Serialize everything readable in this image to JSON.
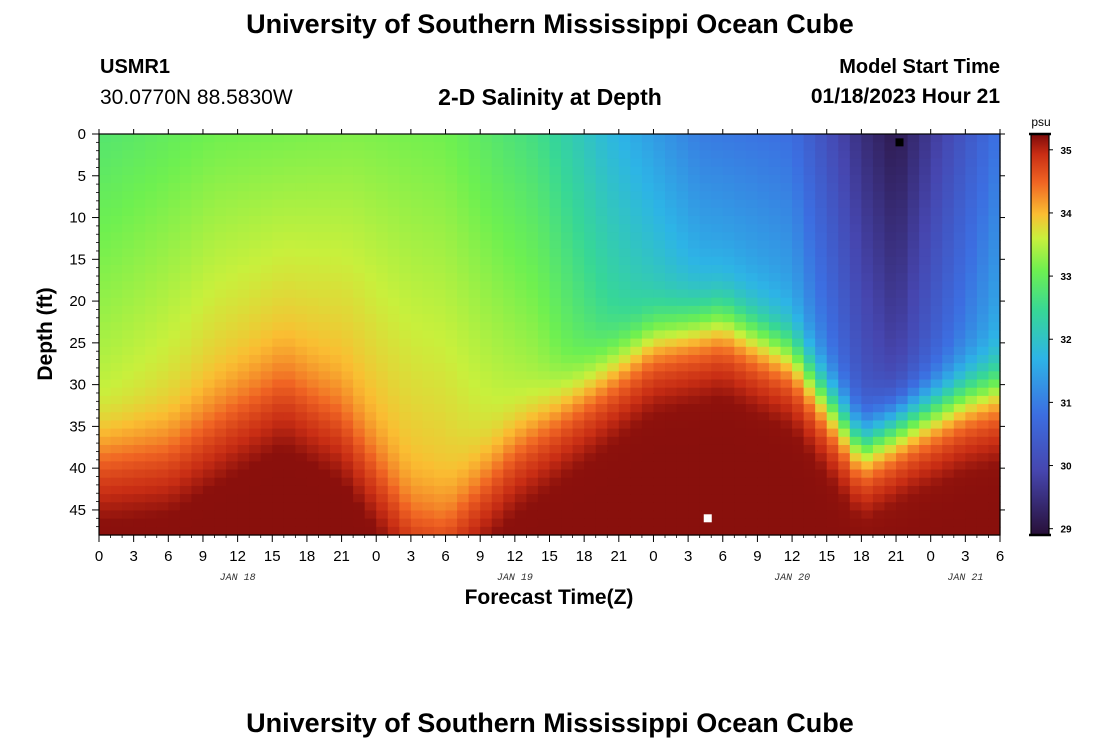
{
  "header": {
    "title": "University of Southern Mississippi Ocean Cube",
    "station_id": "USMR1",
    "coordinates": "30.0770N  88.5830W",
    "subtitle": "2-D Salinity at Depth",
    "start_label": "Model Start Time",
    "start_value": "01/18/2023 Hour 21"
  },
  "footer": {
    "title": "University of Southern Mississippi Ocean Cube"
  },
  "chart_data": {
    "type": "heatmap",
    "title": "2-D Salinity at Depth",
    "xlabel": "Forecast Time(Z)",
    "ylabel": "Depth (ft)",
    "x_range_hours": [
      0,
      78
    ],
    "x_ticks": [
      0,
      3,
      6,
      9,
      12,
      15,
      18,
      21,
      24,
      27,
      30,
      33,
      36,
      39,
      42,
      45,
      48,
      51,
      54,
      57,
      60,
      63,
      66,
      69,
      72,
      75,
      78
    ],
    "x_tick_labels": [
      "0",
      "3",
      "6",
      "9",
      "12",
      "15",
      "18",
      "21",
      "0",
      "3",
      "6",
      "9",
      "12",
      "15",
      "18",
      "21",
      "0",
      "3",
      "6",
      "9",
      "12",
      "15",
      "18",
      "21",
      "0",
      "3",
      "6"
    ],
    "day_labels": [
      {
        "hour": 12,
        "text": "JAN 18"
      },
      {
        "hour": 36,
        "text": "JAN 19"
      },
      {
        "hour": 60,
        "text": "JAN 20"
      },
      {
        "hour": 75,
        "text": "JAN 21"
      }
    ],
    "y_range_ft": [
      0,
      48
    ],
    "y_ticks": [
      0,
      5,
      10,
      15,
      20,
      25,
      30,
      35,
      40,
      45
    ],
    "colorbar": {
      "unit": "psu",
      "range": [
        28.9,
        35.25
      ],
      "ticks": [
        29,
        30,
        31,
        32,
        33,
        34,
        35
      ]
    },
    "halocline_depth_ft": [
      {
        "hour": 0,
        "depth": 37
      },
      {
        "hour": 6,
        "depth": 36
      },
      {
        "hour": 12,
        "depth": 31
      },
      {
        "hour": 16,
        "depth": 28
      },
      {
        "hour": 21,
        "depth": 32
      },
      {
        "hour": 27,
        "depth": 44
      },
      {
        "hour": 30,
        "depth": 45
      },
      {
        "hour": 36,
        "depth": 36
      },
      {
        "hour": 42,
        "depth": 30
      },
      {
        "hour": 48,
        "depth": 24
      },
      {
        "hour": 54,
        "depth": 22
      },
      {
        "hour": 60,
        "depth": 26
      },
      {
        "hour": 66,
        "depth": 37
      },
      {
        "hour": 70,
        "depth": 34
      },
      {
        "hour": 75,
        "depth": 31
      },
      {
        "hour": 78,
        "depth": 30
      }
    ],
    "surface_salinity_psu": [
      {
        "hour": 0,
        "value": 32.8
      },
      {
        "hour": 10,
        "value": 33.1
      },
      {
        "hour": 22,
        "value": 33.2
      },
      {
        "hour": 30,
        "value": 33.1
      },
      {
        "hour": 38,
        "value": 32.6
      },
      {
        "hour": 44,
        "value": 31.8
      },
      {
        "hour": 52,
        "value": 31.0
      },
      {
        "hour": 60,
        "value": 30.8
      },
      {
        "hour": 66,
        "value": 29.5
      },
      {
        "hour": 69,
        "value": 29.1
      },
      {
        "hour": 72,
        "value": 29.7
      },
      {
        "hour": 78,
        "value": 30.9
      }
    ],
    "max_marker": {
      "hour": 52.7,
      "depth": 46,
      "color": "#ffffff"
    },
    "min_marker": {
      "hour": 69.3,
      "depth": 1,
      "color": "#000000"
    }
  }
}
